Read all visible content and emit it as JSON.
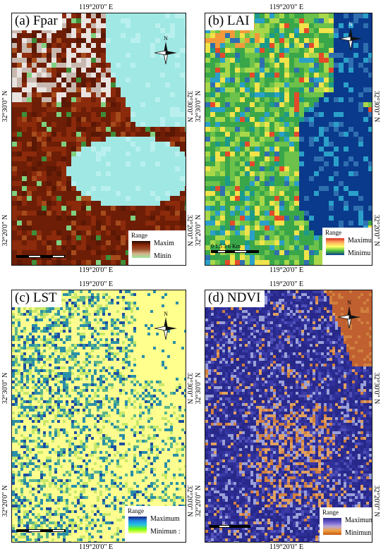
{
  "panels": [
    {
      "id": "fpar",
      "title": "(a) Fpar",
      "legend": {
        "title": "Range",
        "max_label": "Maxim",
        "min_label": "Minin",
        "ramp": [
          "#2a0a00",
          "#8b2a0b",
          "#a0522d",
          "#d2b48c",
          "#9be7a0"
        ]
      },
      "scale_labels": "",
      "colors": [
        "#6e1e06",
        "#8c2a0c",
        "#5a1805",
        "#c8b9b0",
        "#e9e4e1",
        "#3e8e3a",
        "#9fe8e4",
        "#b9f0ee",
        "#a64b1b",
        "#7fd07f"
      ]
    },
    {
      "id": "lai",
      "title": "(b) LAI",
      "legend": {
        "title": "Range",
        "max_label": "Maximum",
        "min_label": "Minimu",
        "ramp": [
          "#d7301f",
          "#fdae61",
          "#ffff66",
          "#4dbf3a",
          "#0b3d91"
        ]
      },
      "scale_labels": "0  1.5  3  6 Km",
      "colors": [
        "#3aa64a",
        "#6cc24a",
        "#a8d84a",
        "#f1e34a",
        "#f29a3a",
        "#2f6fb0",
        "#0a3a8c",
        "#1c9a8a",
        "#2aa0c8",
        "#e44a2a"
      ]
    },
    {
      "id": "lst",
      "title": "(c) LST",
      "legend": {
        "title": "Range",
        "max_label": "Maximum",
        "min_label": "Minimun :",
        "ramp": [
          "#1a237e",
          "#1e88e5",
          "#26c6da",
          "#76ff03",
          "#ffff8d"
        ]
      },
      "scale_labels": "",
      "colors": [
        "#ffff8d",
        "#fbfb92",
        "#f5f78a",
        "#c8e86a",
        "#5bb58c",
        "#2b8fa8",
        "#1f4fa0",
        "#e8f28a"
      ]
    },
    {
      "id": "ndvi",
      "title": "(d) NDVI",
      "legend": {
        "title": "Range",
        "max_label": "Maximum",
        "min_label": "Minimun",
        "ramp": [
          "#2b2b8c",
          "#6a5acd",
          "#b8a6d8",
          "#f0a040",
          "#c75a10"
        ]
      },
      "scale_labels": "",
      "colors": [
        "#27288a",
        "#30309a",
        "#3b3ba8",
        "#5050b8",
        "#e0a060",
        "#d08040",
        "#9aa0d8",
        "#c06030"
      ]
    }
  ],
  "coords": {
    "lon_top": "119°20'0\" E",
    "lon_bottom": "119°20'0\" E",
    "lat_upper": "32°30'0\" N",
    "lat_lower": "32°20'0\" N"
  },
  "north_label": "N"
}
